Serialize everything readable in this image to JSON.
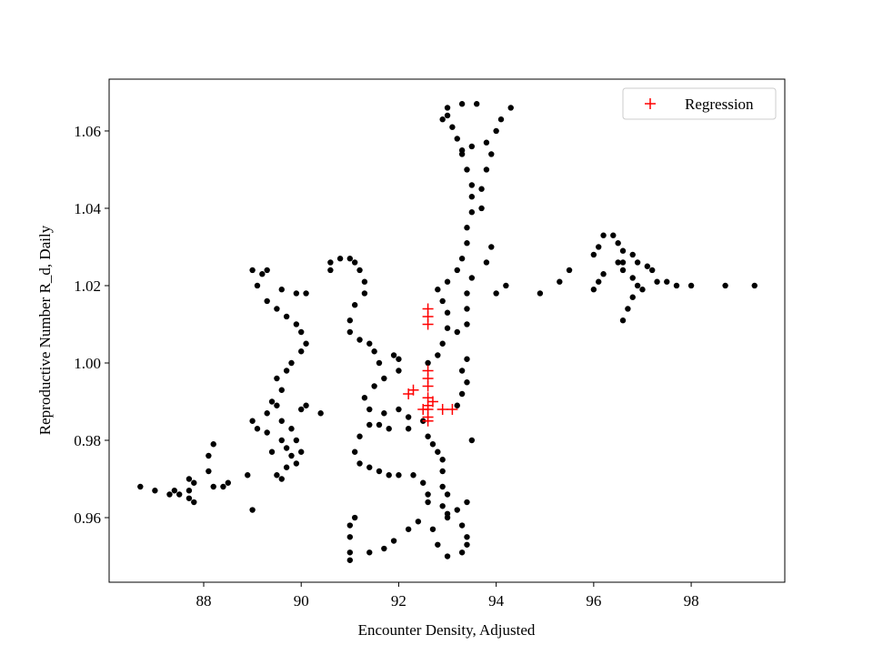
{
  "chart_data": {
    "type": "scatter",
    "x_label": "Encounter Density, Adjusted",
    "y_label": "Reproductive Number R_d, Daily",
    "xlim": [
      86.06,
      99.92
    ],
    "ylim": [
      0.9433,
      1.0734
    ],
    "xticks": [
      88,
      90,
      92,
      94,
      96,
      98
    ],
    "yticks": [
      0.96,
      0.98,
      {
        "value": 1,
        "label": "1.00"
      },
      1.02,
      1.04,
      1.06
    ],
    "legend": "upper right",
    "series": [
      {
        "color": "#000000",
        "marker": "dot",
        "x": [
          86.7,
          87.0,
          87.3,
          87.4,
          87.5,
          87.7,
          87.7,
          87.7,
          87.8,
          87.8,
          88.1,
          88.1,
          88.2,
          88.2,
          88.4,
          88.5,
          88.9,
          89.0,
          89.0,
          89.1,
          89.3,
          89.4,
          89.5,
          89.6,
          89.6,
          89.3,
          89.4,
          89.7,
          89.8,
          89.9,
          89.8,
          90.0,
          89.9,
          89.7,
          89.5,
          89.6,
          89.6,
          89.5,
          89.7,
          89.8,
          90.0,
          90.1,
          90.0,
          89.9,
          89.7,
          89.5,
          89.3,
          89.1,
          89.0,
          89.2,
          89.3,
          89.6,
          89.9,
          90.1,
          90.1,
          90.0,
          90.4,
          90.6,
          90.6,
          90.8,
          91.0,
          91.1,
          91.2,
          91.3,
          91.3,
          91.1,
          91.0,
          91.0,
          91.2,
          91.4,
          91.5,
          91.6,
          91.9,
          92.0,
          92.0,
          91.7,
          91.5,
          91.3,
          91.4,
          91.7,
          92.0,
          92.2,
          92.2,
          91.8,
          91.6,
          91.4,
          91.2,
          91.1,
          91.2,
          91.4,
          91.6,
          91.8,
          92.0,
          92.3,
          92.5,
          92.6,
          92.6,
          92.9,
          93.0,
          93.2,
          93.4,
          93.0,
          92.9,
          92.9,
          92.9,
          92.8,
          91.0,
          91.0,
          91.0,
          91.0,
          91.1,
          91.4,
          91.7,
          91.9,
          92.2,
          92.4,
          92.7,
          92.8,
          93.0,
          93.3,
          93.4,
          93.4,
          93.3,
          93.0,
          92.5,
          92.6,
          92.7,
          92.6,
          92.8,
          92.9,
          93.0,
          93.0,
          92.9,
          92.8,
          93.0,
          93.2,
          93.3,
          93.4,
          93.4,
          93.5,
          93.5,
          93.5,
          93.4,
          93.3,
          93.5,
          93.8,
          94.0,
          94.1,
          94.3,
          93.0,
          93.3,
          93.6,
          93.0,
          92.9,
          93.1,
          93.2,
          93.3,
          93.5,
          93.4,
          93.4,
          93.4,
          93.2,
          93.4,
          93.3,
          93.4,
          93.3,
          93.2,
          93.5,
          93.8,
          93.9,
          94.0,
          94.2,
          93.7,
          93.7,
          93.8,
          93.9,
          94.9,
          95.3,
          95.5,
          96.0,
          96.1,
          96.2,
          96.0,
          96.1,
          96.2,
          96.4,
          96.5,
          96.6,
          96.8,
          96.9,
          97.1,
          97.2,
          96.5,
          96.6,
          96.8,
          96.9,
          96.8,
          96.7,
          96.6,
          97.0,
          96.6,
          97.3,
          97.5,
          97.7,
          98.0,
          98.7,
          99.3
        ],
        "values": [
          0.968,
          0.967,
          0.966,
          0.967,
          0.966,
          0.965,
          0.967,
          0.97,
          0.969,
          0.964,
          0.972,
          0.976,
          0.979,
          0.968,
          0.968,
          0.969,
          0.971,
          0.962,
          0.985,
          0.983,
          0.987,
          0.99,
          0.989,
          0.985,
          0.98,
          0.982,
          0.977,
          0.978,
          0.983,
          0.98,
          0.976,
          0.977,
          0.974,
          0.973,
          0.971,
          0.97,
          0.993,
          0.996,
          0.998,
          1.0,
          1.003,
          1.005,
          1.008,
          1.01,
          1.012,
          1.014,
          1.016,
          1.02,
          1.024,
          1.023,
          1.024,
          1.019,
          1.018,
          1.018,
          0.989,
          0.988,
          0.987,
          1.026,
          1.024,
          1.027,
          1.027,
          1.026,
          1.024,
          1.021,
          1.018,
          1.015,
          1.011,
          1.008,
          1.006,
          1.005,
          1.003,
          1.0,
          1.002,
          1.001,
          0.998,
          0.996,
          0.994,
          0.991,
          0.988,
          0.987,
          0.988,
          0.986,
          0.983,
          0.983,
          0.984,
          0.984,
          0.981,
          0.977,
          0.974,
          0.973,
          0.972,
          0.971,
          0.971,
          0.971,
          0.969,
          0.966,
          0.964,
          0.963,
          0.961,
          0.962,
          0.964,
          0.966,
          0.968,
          0.972,
          0.975,
          0.977,
          0.949,
          0.951,
          0.955,
          0.958,
          0.96,
          0.951,
          0.952,
          0.954,
          0.957,
          0.959,
          0.957,
          0.953,
          0.95,
          0.951,
          0.953,
          0.955,
          0.958,
          0.96,
          0.985,
          0.981,
          0.979,
          1.0,
          1.002,
          1.005,
          1.009,
          1.013,
          1.016,
          1.019,
          1.021,
          1.024,
          1.027,
          1.031,
          1.035,
          1.039,
          1.043,
          1.046,
          1.05,
          1.054,
          1.056,
          1.057,
          1.06,
          1.063,
          1.066,
          1.066,
          1.067,
          1.067,
          1.064,
          1.063,
          1.061,
          1.058,
          1.055,
          1.022,
          1.018,
          1.014,
          1.01,
          1.008,
          1.001,
          0.998,
          0.995,
          0.992,
          0.989,
          0.98,
          1.026,
          1.03,
          1.018,
          1.02,
          1.04,
          1.045,
          1.05,
          1.054,
          1.018,
          1.021,
          1.024,
          1.019,
          1.021,
          1.023,
          1.028,
          1.03,
          1.033,
          1.033,
          1.031,
          1.029,
          1.028,
          1.026,
          1.025,
          1.024,
          1.026,
          1.024,
          1.022,
          1.02,
          1.017,
          1.014,
          1.011,
          1.019,
          1.026,
          1.021,
          1.021,
          1.02,
          1.02,
          1.02,
          1.02
        ]
      },
      {
        "name": "Regression",
        "color": "#ff0000",
        "marker": "plus",
        "x": [
          92.6,
          92.6,
          92.6,
          92.6,
          92.6,
          92.6,
          92.6,
          92.6,
          92.6,
          92.6,
          92.6,
          92.5,
          92.2,
          92.3,
          92.9,
          93.1,
          92.7
        ],
        "values": [
          1.014,
          1.012,
          1.01,
          0.998,
          0.996,
          0.994,
          0.991,
          0.989,
          0.988,
          0.986,
          0.985,
          0.988,
          0.992,
          0.993,
          0.988,
          0.988,
          0.99
        ]
      }
    ]
  }
}
